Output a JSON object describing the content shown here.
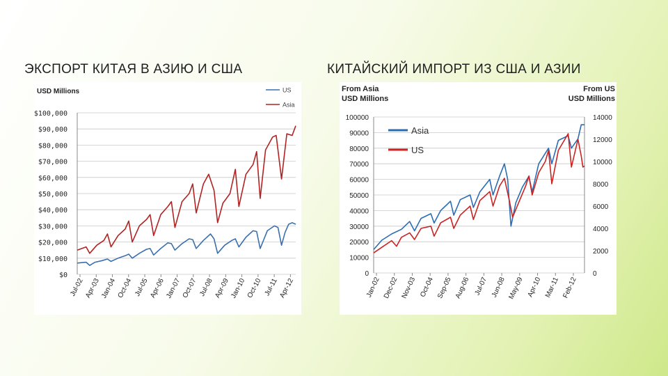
{
  "slide": {
    "title_left": "ЭКСПОРТ КИТАЯ В АЗИЮ И США",
    "title_right": "КИТАЙСКИЙ ИМПОРТ ИЗ США И АЗИИ"
  },
  "colors": {
    "us_left": "#3a6fb0",
    "asia_left": "#b22222",
    "asia_right": "#2a6db5",
    "us_right": "#cc2222",
    "grid": "#c8c8c8"
  },
  "chart_data": [
    {
      "type": "line",
      "title": "USD Millions",
      "ylim": [
        0,
        100000
      ],
      "yticks": [
        0,
        10000,
        20000,
        30000,
        40000,
        50000,
        60000,
        70000,
        80000,
        90000,
        100000
      ],
      "ytick_labels": [
        "$0",
        "$10,000",
        "$20,000",
        "$30,000",
        "$40,000",
        "$50,000",
        "$60,000",
        "$70,000",
        "$80,000",
        "$90,000",
        "$100,000"
      ],
      "xtick_labels": [
        "Jul-02",
        "Apr-03",
        "Jan-04",
        "Oct-04",
        "Jul-05",
        "Apr-06",
        "Jan-07",
        "Oct-07",
        "Jul-08",
        "Apr-09",
        "Jan-10",
        "Oct-10",
        "Jul-11",
        "Apr-12"
      ],
      "x_start": "2002-07",
      "x_end": "2012-10",
      "grid": true,
      "legend_position": "top-right",
      "series": [
        {
          "name": "US",
          "color_key": "us_left",
          "points": [
            [
              "2002-07",
              7000
            ],
            [
              "2002-12",
              7500
            ],
            [
              "2003-02",
              5500
            ],
            [
              "2003-05",
              7500
            ],
            [
              "2003-09",
              8500
            ],
            [
              "2003-12",
              9500
            ],
            [
              "2004-02",
              8000
            ],
            [
              "2004-06",
              10000
            ],
            [
              "2004-10",
              11500
            ],
            [
              "2004-12",
              12500
            ],
            [
              "2005-02",
              10000
            ],
            [
              "2005-06",
              13000
            ],
            [
              "2005-10",
              15500
            ],
            [
              "2005-12",
              16000
            ],
            [
              "2006-02",
              12000
            ],
            [
              "2006-06",
              16000
            ],
            [
              "2006-10",
              19500
            ],
            [
              "2006-12",
              19000
            ],
            [
              "2007-02",
              15000
            ],
            [
              "2007-06",
              19000
            ],
            [
              "2007-10",
              22000
            ],
            [
              "2007-12",
              21500
            ],
            [
              "2008-02",
              16000
            ],
            [
              "2008-06",
              21000
            ],
            [
              "2008-10",
              25000
            ],
            [
              "2008-12",
              22000
            ],
            [
              "2009-02",
              13000
            ],
            [
              "2009-06",
              18000
            ],
            [
              "2009-10",
              21000
            ],
            [
              "2009-12",
              22000
            ],
            [
              "2010-02",
              17000
            ],
            [
              "2010-06",
              23000
            ],
            [
              "2010-10",
              27000
            ],
            [
              "2010-12",
              26500
            ],
            [
              "2011-02",
              16000
            ],
            [
              "2011-06",
              27000
            ],
            [
              "2011-10",
              30000
            ],
            [
              "2011-12",
              29000
            ],
            [
              "2012-02",
              18000
            ],
            [
              "2012-04",
              26000
            ],
            [
              "2012-06",
              31000
            ],
            [
              "2012-08",
              32000
            ],
            [
              "2012-10",
              31000
            ]
          ]
        },
        {
          "name": "Asia",
          "color_key": "asia_left",
          "points": [
            [
              "2002-07",
              15000
            ],
            [
              "2002-12",
              17000
            ],
            [
              "2003-02",
              13000
            ],
            [
              "2003-06",
              18000
            ],
            [
              "2003-10",
              21000
            ],
            [
              "2003-12",
              25000
            ],
            [
              "2004-02",
              17000
            ],
            [
              "2004-06",
              24000
            ],
            [
              "2004-10",
              28000
            ],
            [
              "2004-12",
              33000
            ],
            [
              "2005-02",
              20000
            ],
            [
              "2005-06",
              30000
            ],
            [
              "2005-10",
              34000
            ],
            [
              "2005-12",
              37000
            ],
            [
              "2006-02",
              24000
            ],
            [
              "2006-06",
              37000
            ],
            [
              "2006-10",
              42000
            ],
            [
              "2006-12",
              45000
            ],
            [
              "2007-02",
              29000
            ],
            [
              "2007-06",
              45000
            ],
            [
              "2007-10",
              50000
            ],
            [
              "2007-12",
              56000
            ],
            [
              "2008-02",
              38000
            ],
            [
              "2008-06",
              56000
            ],
            [
              "2008-09",
              62000
            ],
            [
              "2008-12",
              52000
            ],
            [
              "2009-02",
              32000
            ],
            [
              "2009-05",
              44000
            ],
            [
              "2009-09",
              50000
            ],
            [
              "2009-12",
              65000
            ],
            [
              "2010-02",
              42000
            ],
            [
              "2010-06",
              62000
            ],
            [
              "2010-10",
              68000
            ],
            [
              "2010-12",
              76000
            ],
            [
              "2011-02",
              47000
            ],
            [
              "2011-05",
              77000
            ],
            [
              "2011-09",
              85000
            ],
            [
              "2011-11",
              86000
            ],
            [
              "2012-02",
              59000
            ],
            [
              "2012-05",
              87000
            ],
            [
              "2012-08",
              86000
            ],
            [
              "2012-10",
              92000
            ]
          ]
        }
      ]
    },
    {
      "type": "line",
      "left_axis_title": [
        "From Asia",
        "USD Millions"
      ],
      "right_axis_title": [
        "From US",
        "USD Millions"
      ],
      "ylim_left": [
        0,
        100000
      ],
      "yticks_left": [
        0,
        10000,
        20000,
        30000,
        40000,
        50000,
        60000,
        70000,
        80000,
        90000,
        100000
      ],
      "ytick_labels_left": [
        "0",
        "10000",
        "20000",
        "30000",
        "40000",
        "50000",
        "60000",
        "70000",
        "80000",
        "90000",
        "100000"
      ],
      "ylim_right": [
        0,
        14000
      ],
      "yticks_right": [
        0,
        2000,
        4000,
        6000,
        8000,
        10000,
        12000,
        14000
      ],
      "ytick_labels_right": [
        "0",
        "2000",
        "4000",
        "6000",
        "8000",
        "10000",
        "12000",
        "14000"
      ],
      "xtick_labels": [
        "Jan-02",
        "Dec-02",
        "Nov-03",
        "Oct-04",
        "Sep-05",
        "Aug-06",
        "Jul-07",
        "Jun-08",
        "May-09",
        "Apr-10",
        "Mar-11",
        "Feb-12"
      ],
      "x_start": "2002-01",
      "x_end": "2012-10",
      "grid": true,
      "legend_position": "top-left",
      "series": [
        {
          "name": "Asia",
          "axis": "left",
          "color_key": "asia_right",
          "points": [
            [
              "2002-01",
              15000
            ],
            [
              "2002-06",
              21000
            ],
            [
              "2002-12",
              25000
            ],
            [
              "2003-06",
              28000
            ],
            [
              "2003-11",
              33000
            ],
            [
              "2004-02",
              27000
            ],
            [
              "2004-06",
              35000
            ],
            [
              "2004-12",
              38000
            ],
            [
              "2005-02",
              32000
            ],
            [
              "2005-06",
              40000
            ],
            [
              "2005-12",
              46000
            ],
            [
              "2006-02",
              37000
            ],
            [
              "2006-06",
              47000
            ],
            [
              "2006-12",
              50000
            ],
            [
              "2007-02",
              42000
            ],
            [
              "2007-06",
              52000
            ],
            [
              "2007-12",
              60000
            ],
            [
              "2008-02",
              50000
            ],
            [
              "2008-06",
              62000
            ],
            [
              "2008-09",
              70000
            ],
            [
              "2008-11",
              60000
            ],
            [
              "2009-01",
              30000
            ],
            [
              "2009-04",
              45000
            ],
            [
              "2009-08",
              55000
            ],
            [
              "2009-12",
              62000
            ],
            [
              "2010-02",
              52000
            ],
            [
              "2010-06",
              70000
            ],
            [
              "2010-12",
              80000
            ],
            [
              "2011-02",
              70000
            ],
            [
              "2011-06",
              85000
            ],
            [
              "2011-12",
              88000
            ],
            [
              "2012-02",
              80000
            ],
            [
              "2012-06",
              86000
            ],
            [
              "2012-08",
              95000
            ],
            [
              "2012-10",
              95000
            ]
          ]
        },
        {
          "name": "US",
          "axis": "right",
          "color_key": "us_right",
          "points": [
            [
              "2002-01",
              1800
            ],
            [
              "2002-06",
              2300
            ],
            [
              "2002-12",
              2900
            ],
            [
              "2003-03",
              2400
            ],
            [
              "2003-06",
              3200
            ],
            [
              "2003-11",
              3600
            ],
            [
              "2004-02",
              3000
            ],
            [
              "2004-06",
              4000
            ],
            [
              "2004-12",
              4200
            ],
            [
              "2005-02",
              3300
            ],
            [
              "2005-06",
              4500
            ],
            [
              "2005-12",
              5000
            ],
            [
              "2006-02",
              4000
            ],
            [
              "2006-06",
              5200
            ],
            [
              "2006-12",
              6000
            ],
            [
              "2007-02",
              4800
            ],
            [
              "2007-06",
              6500
            ],
            [
              "2007-12",
              7300
            ],
            [
              "2008-02",
              6000
            ],
            [
              "2008-06",
              7800
            ],
            [
              "2008-09",
              8500
            ],
            [
              "2008-12",
              6500
            ],
            [
              "2009-02",
              5000
            ],
            [
              "2009-06",
              6400
            ],
            [
              "2009-10",
              7800
            ],
            [
              "2009-12",
              8700
            ],
            [
              "2010-02",
              7000
            ],
            [
              "2010-06",
              9000
            ],
            [
              "2010-10",
              10000
            ],
            [
              "2010-12",
              11000
            ],
            [
              "2011-02",
              8000
            ],
            [
              "2011-06",
              11000
            ],
            [
              "2011-10",
              12000
            ],
            [
              "2011-12",
              12500
            ],
            [
              "2012-02",
              9500
            ],
            [
              "2012-06",
              12000
            ],
            [
              "2012-08",
              10500
            ],
            [
              "2012-09",
              9500
            ],
            [
              "2012-10",
              9600
            ]
          ]
        }
      ]
    }
  ]
}
